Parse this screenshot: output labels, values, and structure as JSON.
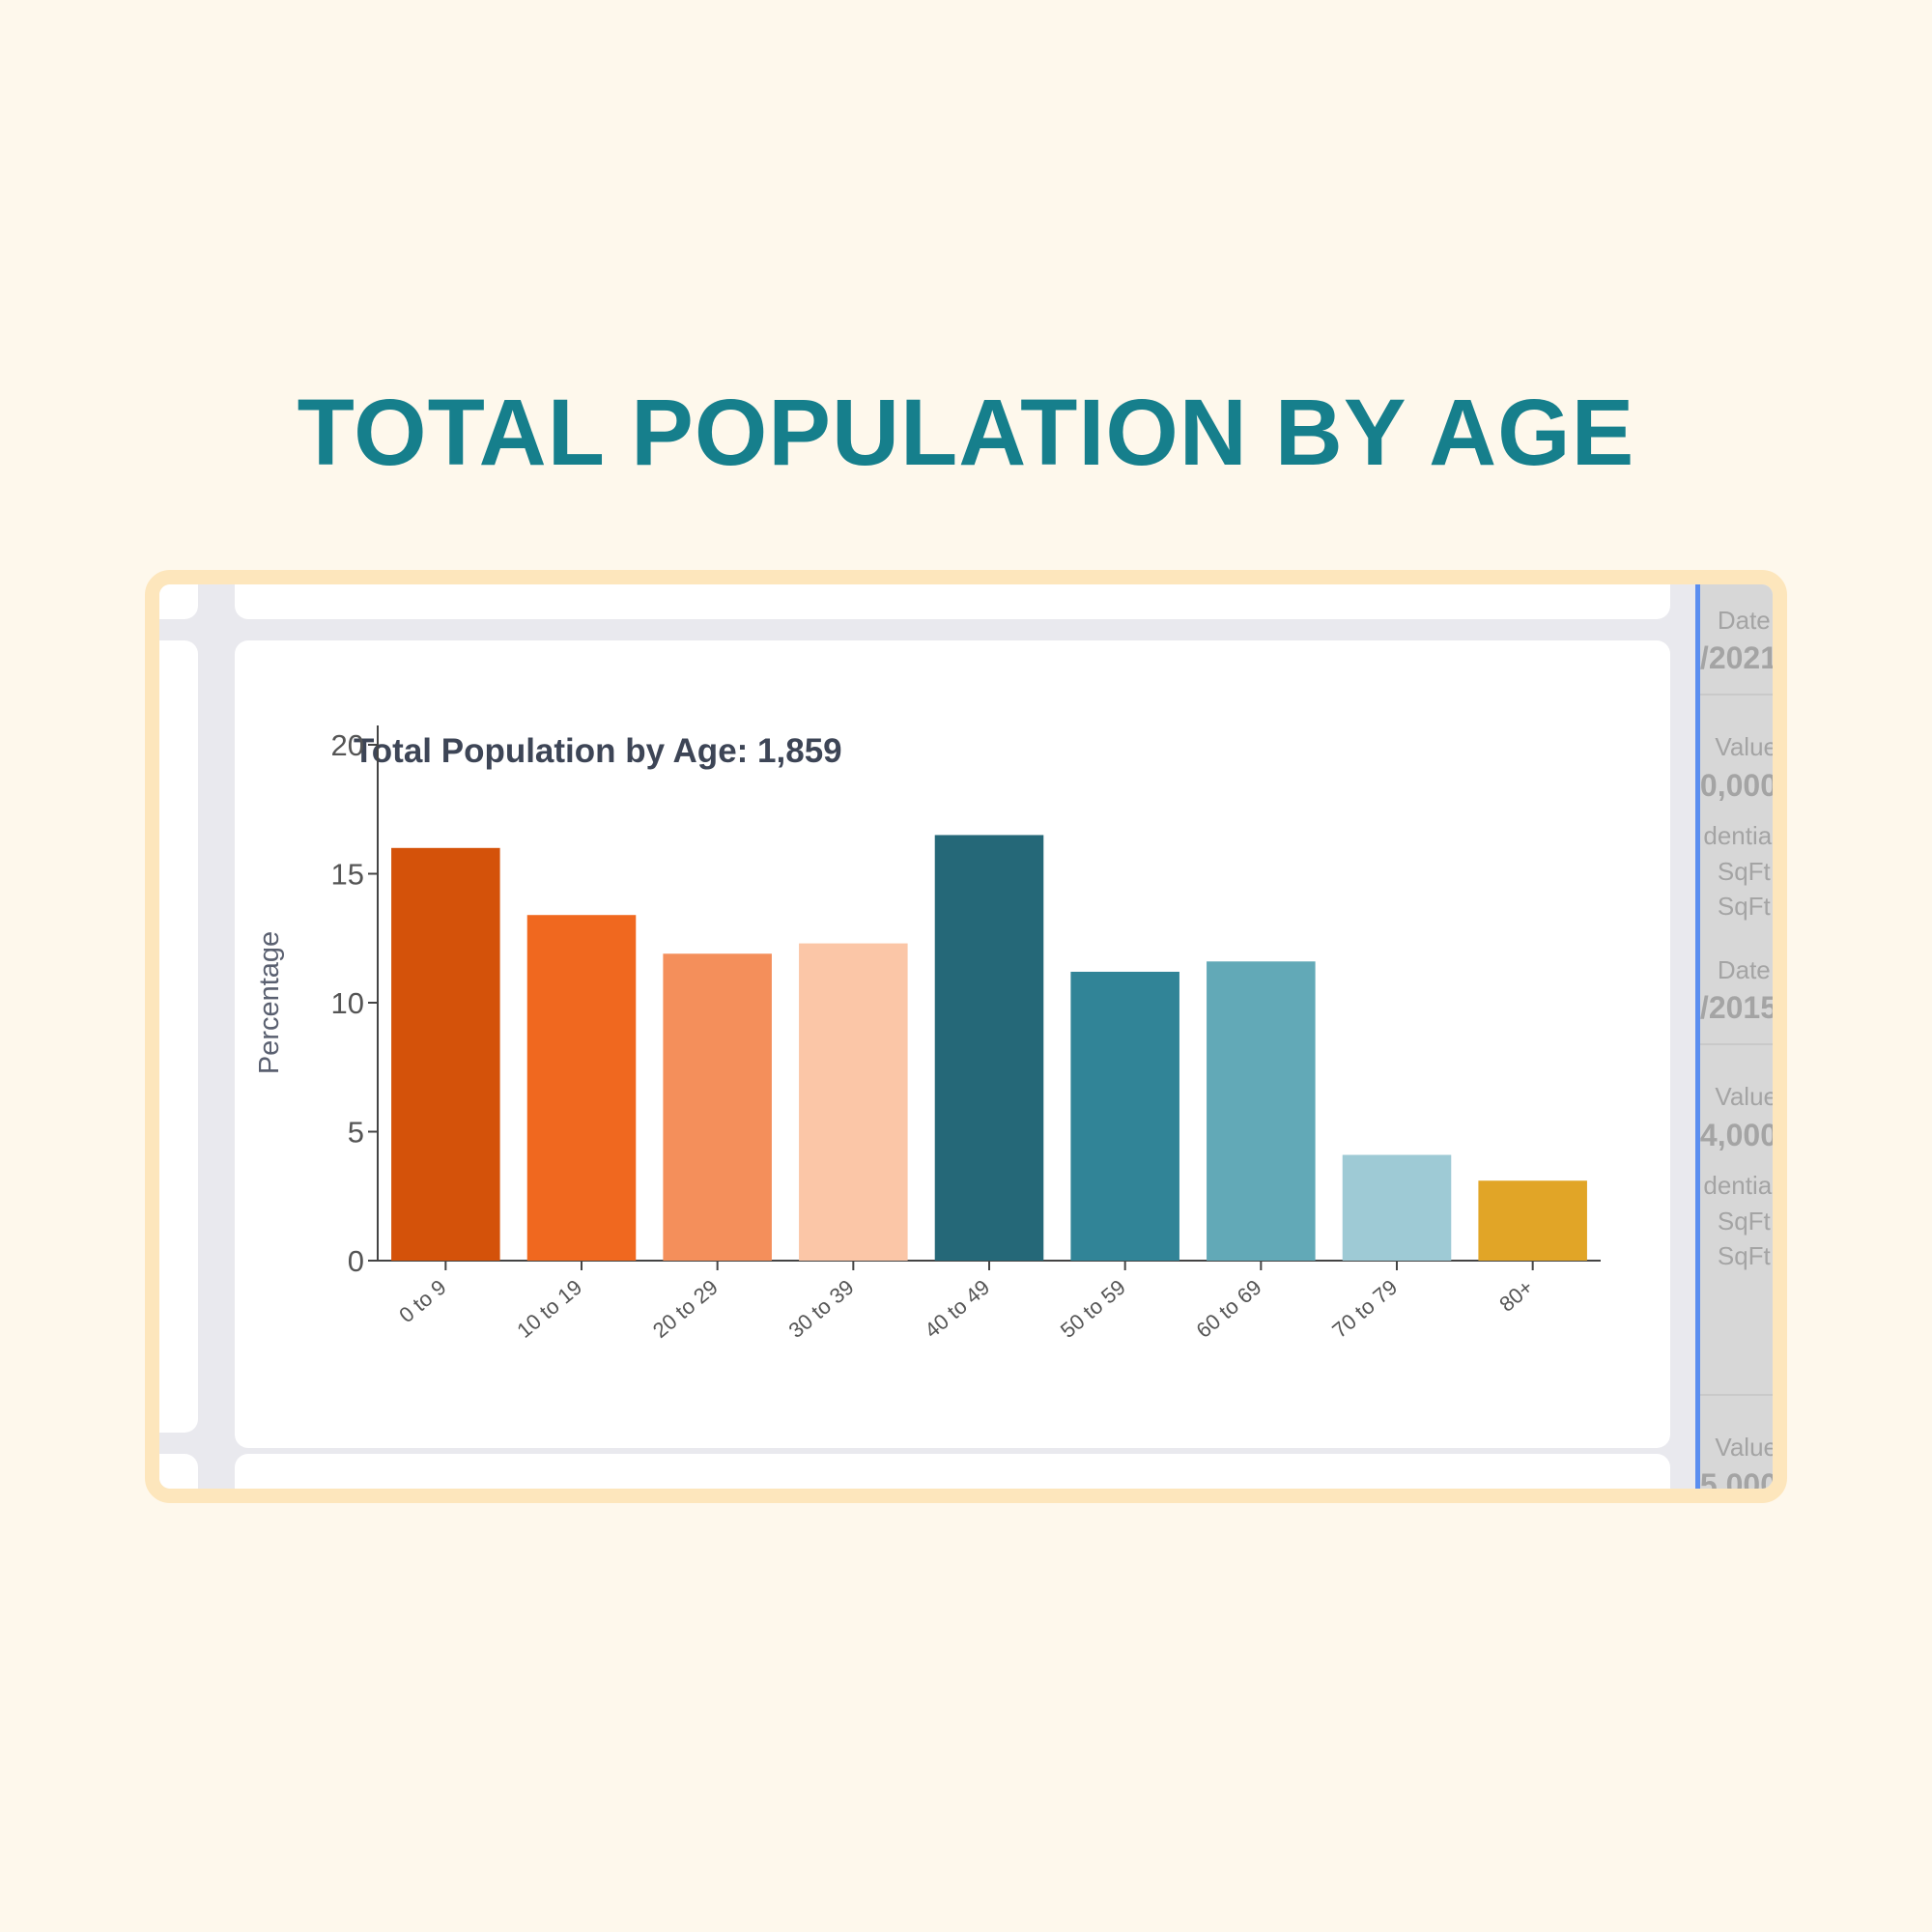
{
  "headline": "TOTAL POPULATION BY AGE",
  "card": {
    "title": "Total Population by Age: 1,859"
  },
  "side_panel": {
    "items": [
      {
        "label": "Date:",
        "value": "/2021"
      },
      {
        "label": "Value",
        "value": "0,000"
      },
      {
        "line1": "dential",
        "line2": "SqFt.",
        "line3": "SqFt."
      },
      {
        "label": "Date:",
        "value": "/2015"
      },
      {
        "label": "Value",
        "value": "4,000"
      },
      {
        "line1": "dential",
        "line2": "SqFt.",
        "line3": "SqFt."
      },
      {
        "label": "Value",
        "value": "5,000"
      }
    ]
  },
  "colors": {
    "headline": "#167f8c",
    "frame": "#fde6bc",
    "page_background": "#fef8ec"
  },
  "chart_data": {
    "type": "bar",
    "title": "Total Population by Age: 1,859",
    "ylabel": "Percentage",
    "xlabel": "",
    "ylim": [
      0,
      20
    ],
    "yticks": [
      0,
      5,
      10,
      15,
      20
    ],
    "categories": [
      "0 to 9",
      "10 to 19",
      "20 to 29",
      "30 to 39",
      "40 to 49",
      "50 to 59",
      "60 to 69",
      "70 to 79",
      "80+"
    ],
    "values": [
      16.0,
      13.4,
      11.9,
      12.3,
      16.5,
      11.2,
      11.6,
      4.1,
      3.1
    ],
    "colors": [
      "#d4520a",
      "#f0681f",
      "#f48f5b",
      "#fbc6a7",
      "#256878",
      "#318497",
      "#62a9b7",
      "#9ecad5",
      "#e1a527"
    ],
    "grid": false,
    "legend": "none"
  }
}
